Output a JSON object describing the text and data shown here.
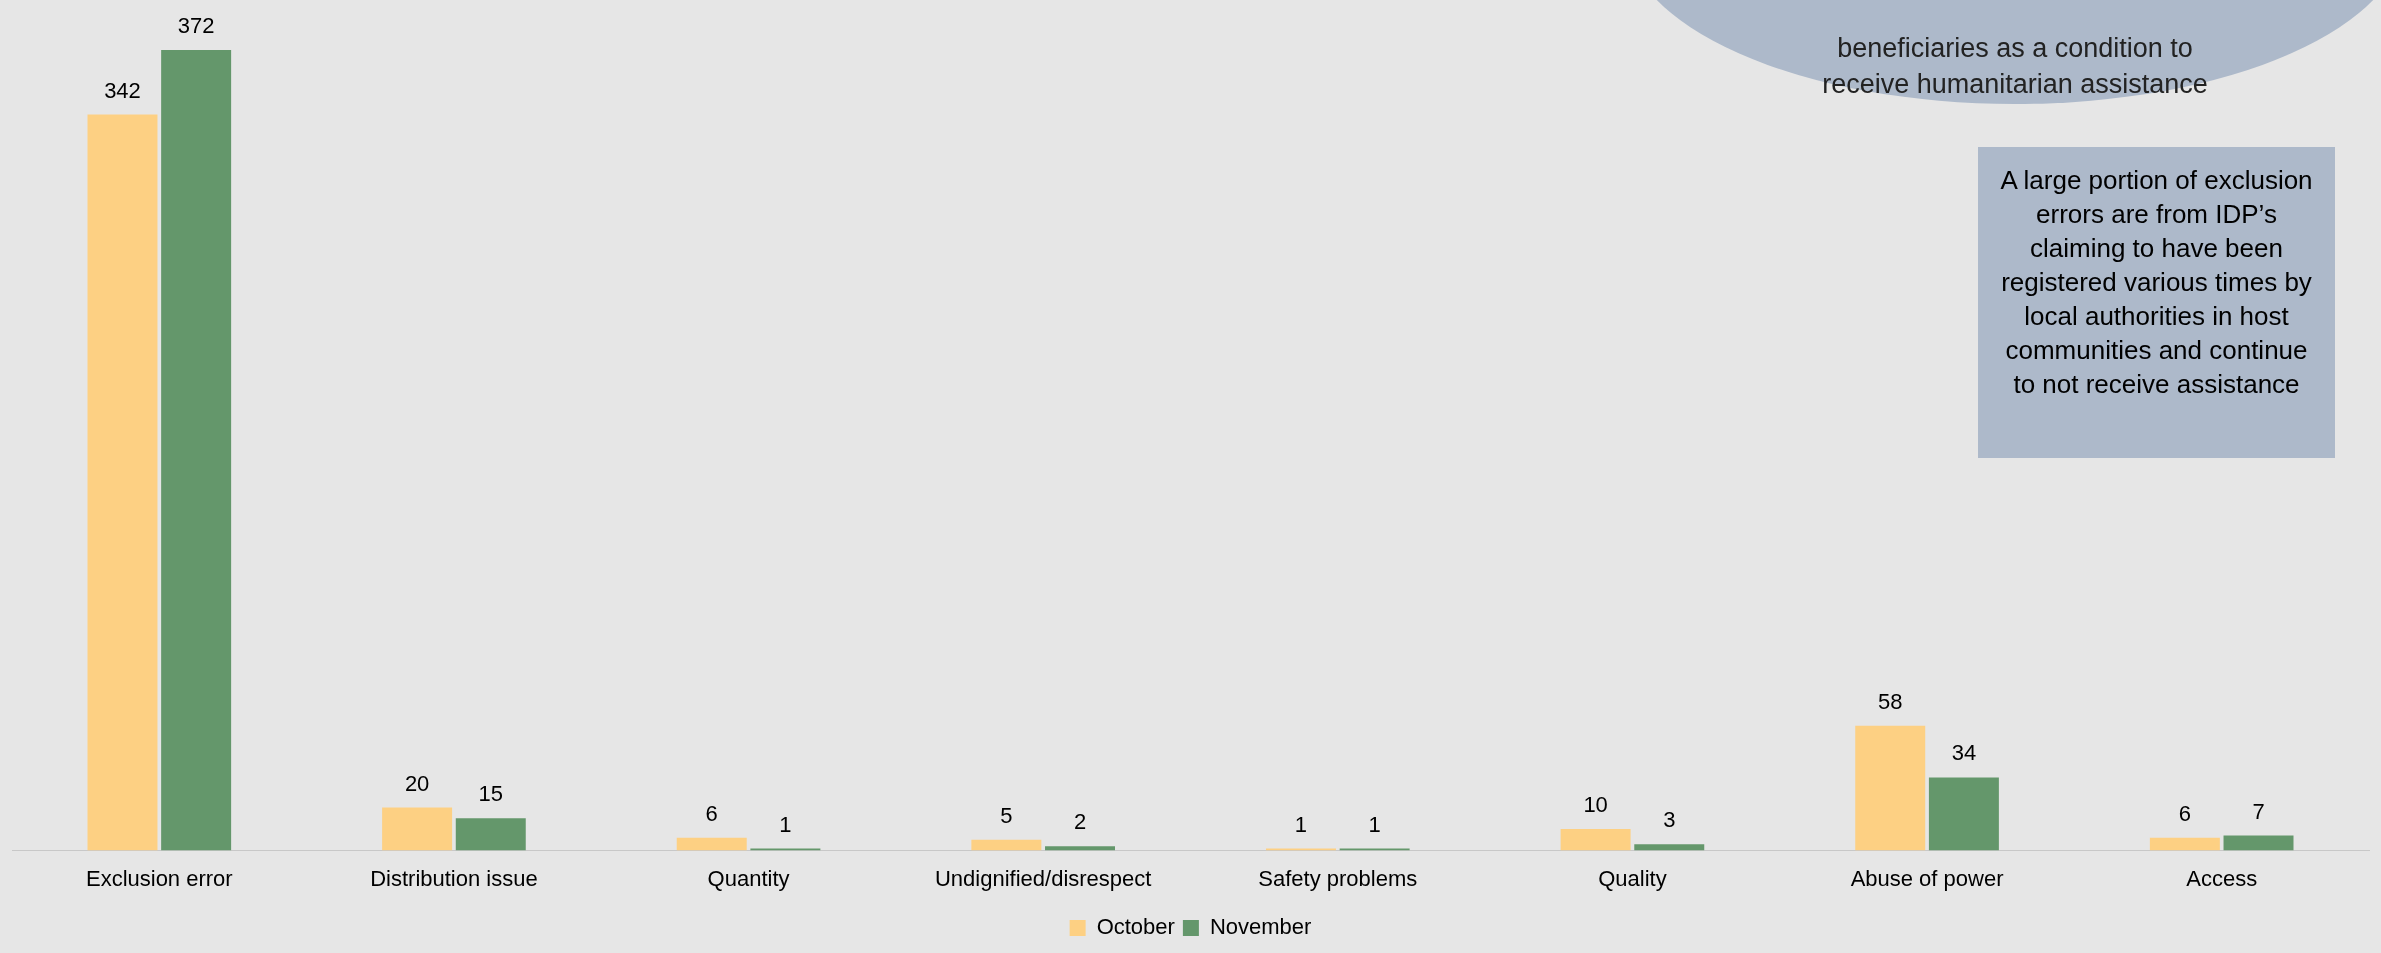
{
  "chart_data": {
    "type": "bar",
    "categories": [
      "Exclusion error",
      "Distribution issue",
      "Quantity",
      "Undignified/disrespect",
      "Safety problems",
      "Quality",
      "Abuse of power",
      "Access"
    ],
    "series": [
      {
        "name": "October",
        "color": "#fdd083",
        "values": [
          342,
          20,
          6,
          5,
          1,
          10,
          58,
          6
        ]
      },
      {
        "name": "November",
        "color": "#64976b",
        "values": [
          372,
          15,
          1,
          2,
          1,
          3,
          34,
          7
        ]
      }
    ],
    "data_labels": true,
    "legend": "bottom",
    "grid": false,
    "annotations": [
      "beneficiaries as a condition to receive humanitarian assistance",
      "A large portion of exclusion errors are from IDP’s claiming to have been registered various times by local authorities in host communities  and continue to not receive assistance"
    ]
  }
}
